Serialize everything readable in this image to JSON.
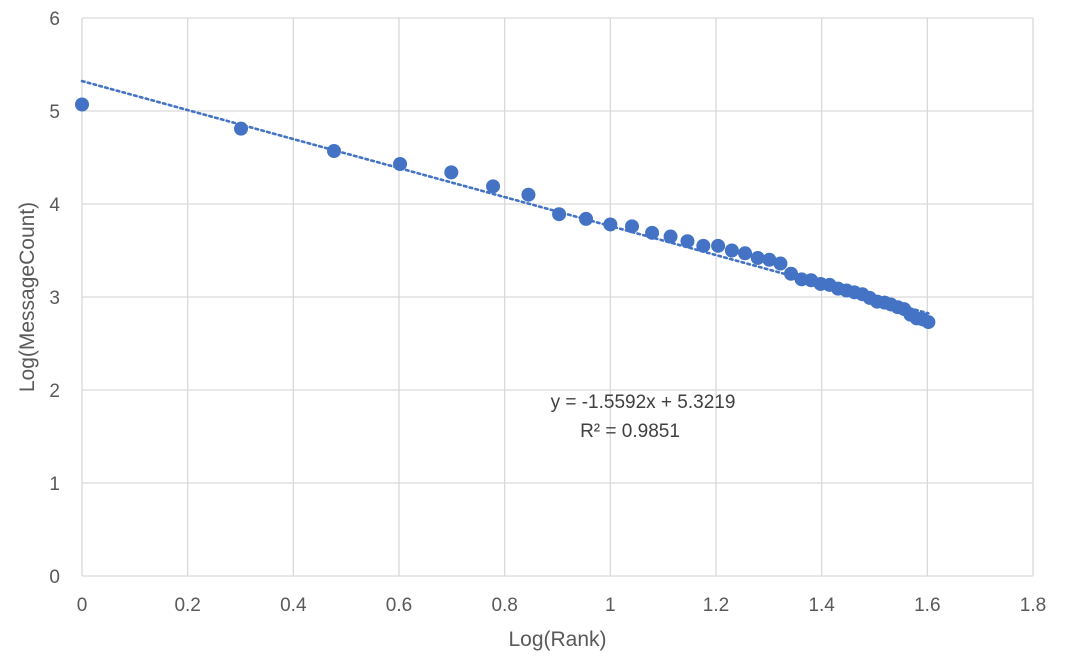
{
  "chart_data": {
    "type": "scatter",
    "title": "",
    "xlabel": "Log(Rank)",
    "ylabel": "Log(MessageCount)",
    "xlim": [
      0,
      1.8
    ],
    "ylim": [
      0,
      6
    ],
    "xticks": [
      0,
      0.2,
      0.4,
      0.6,
      0.8,
      1,
      1.2,
      1.4,
      1.6,
      1.8
    ],
    "yticks": [
      0,
      1,
      2,
      3,
      4,
      5,
      6
    ],
    "xtick_labels": [
      "0",
      "0.2",
      "0.4",
      "0.6",
      "0.8",
      "1",
      "1.2",
      "1.4",
      "1.6",
      "1.8"
    ],
    "ytick_labels": [
      "0",
      "1",
      "2",
      "3",
      "4",
      "5",
      "6"
    ],
    "grid": true,
    "legend": "none",
    "marker_color": "#4472C4",
    "trendline_color": "#4472C4",
    "series": [
      {
        "points": [
          [
            0.0,
            5.07
          ],
          [
            0.301,
            4.81
          ],
          [
            0.477,
            4.57
          ],
          [
            0.602,
            4.43
          ],
          [
            0.699,
            4.34
          ],
          [
            0.778,
            4.19
          ],
          [
            0.845,
            4.1
          ],
          [
            0.903,
            3.89
          ],
          [
            0.954,
            3.84
          ],
          [
            1.0,
            3.78
          ],
          [
            1.041,
            3.76
          ],
          [
            1.079,
            3.69
          ],
          [
            1.114,
            3.65
          ],
          [
            1.146,
            3.6
          ],
          [
            1.176,
            3.55
          ],
          [
            1.204,
            3.55
          ],
          [
            1.23,
            3.5
          ],
          [
            1.255,
            3.47
          ],
          [
            1.279,
            3.42
          ],
          [
            1.301,
            3.4
          ],
          [
            1.322,
            3.36
          ],
          [
            1.342,
            3.25
          ],
          [
            1.362,
            3.19
          ],
          [
            1.38,
            3.18
          ],
          [
            1.398,
            3.14
          ],
          [
            1.415,
            3.13
          ],
          [
            1.431,
            3.09
          ],
          [
            1.447,
            3.07
          ],
          [
            1.462,
            3.05
          ],
          [
            1.477,
            3.03
          ],
          [
            1.491,
            2.99
          ],
          [
            1.505,
            2.95
          ],
          [
            1.519,
            2.94
          ],
          [
            1.531,
            2.92
          ],
          [
            1.544,
            2.89
          ],
          [
            1.556,
            2.87
          ],
          [
            1.568,
            2.81
          ],
          [
            1.58,
            2.77
          ],
          [
            1.591,
            2.76
          ],
          [
            1.602,
            2.73
          ]
        ]
      }
    ],
    "trendline": {
      "type": "linear",
      "slope": -1.5592,
      "intercept": 5.3219,
      "x_range": [
        0,
        1.602
      ],
      "equation_label": "y = -1.5592x + 5.3219",
      "r2_label": "R² = 0.9851"
    }
  }
}
